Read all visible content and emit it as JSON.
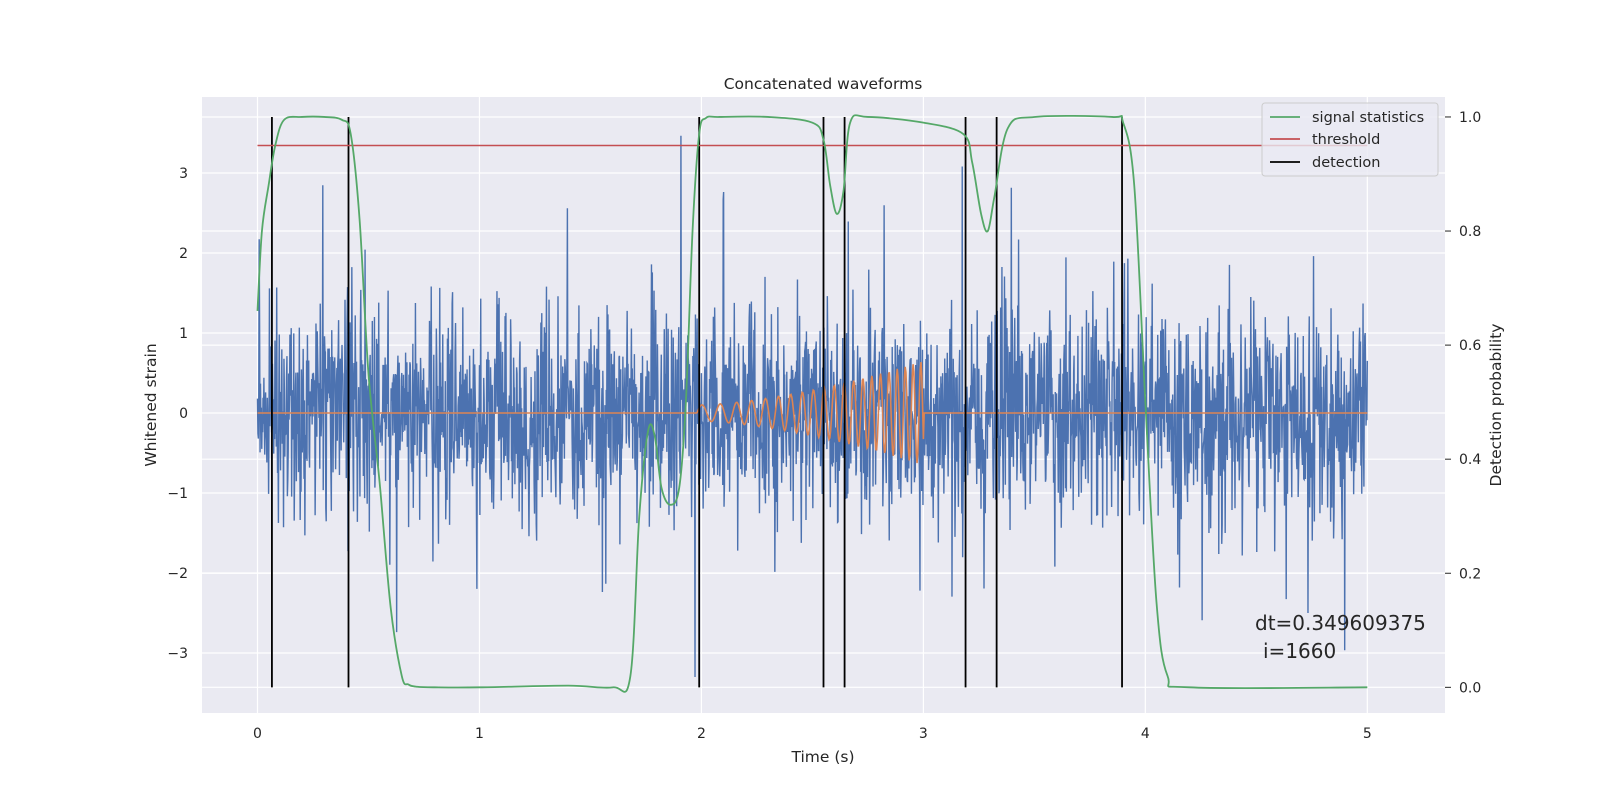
{
  "chart_data": {
    "type": "line",
    "title": "Concatenated waveforms",
    "xlabel": "Time (s)",
    "ylabel": "Whitened strain",
    "ylabel_right": "Detection probability",
    "xlim": [
      -0.25,
      5.35
    ],
    "ylim": [
      -3.75,
      3.95
    ],
    "ylim_right": [
      -0.045,
      1.035
    ],
    "x_ticks": [
      0,
      1,
      2,
      3,
      4,
      5
    ],
    "x_tick_labels": [
      "0",
      "1",
      "2",
      "3",
      "4",
      "5"
    ],
    "y_ticks": [
      -3,
      -2,
      -1,
      0,
      1,
      2,
      3
    ],
    "y_tick_labels": [
      "−3",
      "−2",
      "−1",
      "0",
      "1",
      "2",
      "3"
    ],
    "y_ticks_right": [
      0.0,
      0.2,
      0.4,
      0.6,
      0.8,
      1.0
    ],
    "y_tick_labels_right": [
      "0.0",
      "0.2",
      "0.4",
      "0.6",
      "0.8",
      "1.0"
    ],
    "grid": true,
    "legend_position": "upper right",
    "colors": {
      "background": "#eaeaf2",
      "strain": "#4c72b0",
      "template": "#dd8452",
      "signal_statistics": "#55a868",
      "threshold": "#c44e52",
      "detection": "#000000"
    },
    "series": [
      {
        "name": "",
        "axis": "left",
        "kind": "noise",
        "x_range": [
          0,
          5
        ],
        "amplitude_estimate": 0.62,
        "approx_min": -3.3,
        "approx_max": 3.55
      },
      {
        "name": "",
        "axis": "left",
        "kind": "chirp",
        "x_range": [
          1.98,
          3.0
        ],
        "start_amplitude": 0.1,
        "end_amplitude": 0.65,
        "outside_value": 0
      },
      {
        "name": "signal statistics",
        "axis": "right",
        "x": [
          0,
          0.02,
          0.05,
          0.08,
          0.12,
          0.2,
          0.3,
          0.38,
          0.42,
          0.46,
          0.5,
          0.55,
          0.6,
          0.65,
          0.68,
          0.72,
          0.8,
          1.0,
          1.4,
          1.6,
          1.68,
          1.72,
          1.76,
          1.79,
          1.82,
          1.86,
          1.9,
          1.93,
          1.96,
          1.99,
          2.02,
          2.08,
          2.3,
          2.5,
          2.55,
          2.58,
          2.61,
          2.64,
          2.67,
          2.75,
          3.0,
          3.18,
          3.22,
          3.26,
          3.29,
          3.32,
          3.38,
          3.5,
          3.85,
          3.9,
          3.95,
          4.0,
          4.05,
          4.1,
          4.2,
          5.0
        ],
        "values": [
          0.66,
          0.8,
          0.88,
          0.95,
          0.995,
          1.0,
          1.0,
          0.995,
          0.97,
          0.82,
          0.55,
          0.36,
          0.14,
          0.02,
          0.005,
          0.001,
          0.0,
          0.0,
          0.003,
          0.0,
          0.02,
          0.3,
          0.45,
          0.44,
          0.35,
          0.32,
          0.35,
          0.5,
          0.8,
          0.97,
          0.998,
          1.0,
          1.0,
          0.99,
          0.96,
          0.88,
          0.83,
          0.87,
          0.99,
          1.0,
          0.99,
          0.97,
          0.92,
          0.83,
          0.8,
          0.86,
          0.98,
          1.0,
          1.0,
          0.99,
          0.88,
          0.5,
          0.15,
          0.02,
          0.0,
          0.0
        ]
      },
      {
        "name": "threshold",
        "axis": "right",
        "x": [
          0,
          5
        ],
        "values": [
          0.95,
          0.95
        ]
      },
      {
        "name": "detection",
        "axis": "right",
        "kind": "vertical_lines",
        "x": [
          0.065,
          0.41,
          1.99,
          2.55,
          2.645,
          3.19,
          3.33,
          3.895
        ],
        "y_range": [
          0.0,
          1.0
        ]
      }
    ],
    "annotation": {
      "line1": "dt=0.349609375",
      "line2": "i=1660"
    }
  }
}
